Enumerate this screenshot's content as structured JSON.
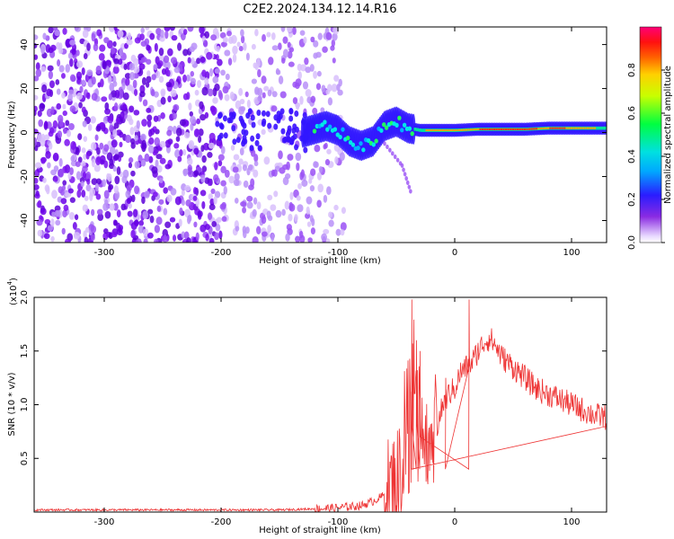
{
  "title": "C2E2.2024.134.12.14.R16",
  "chart_data": [
    {
      "type": "heatmap",
      "xlabel": "Height of straight line (km)",
      "ylabel": "Frequency (Hz)",
      "xlim": [
        -360,
        130
      ],
      "ylim": [
        -50,
        48
      ],
      "xticks": [
        -300,
        -200,
        -100,
        0,
        100
      ],
      "yticks": [
        -40,
        -20,
        0,
        20,
        40
      ],
      "colorbar": {
        "label": "Normalized spectral amplitude",
        "ticks": [
          "0.0",
          "0.2",
          "0.4",
          "0.6",
          "0.8"
        ],
        "range": [
          0,
          1
        ]
      },
      "ridge": {
        "description_values": [
          [
            -130,
            0
          ],
          [
            -110,
            3
          ],
          [
            -100,
            1
          ],
          [
            -90,
            -4
          ],
          [
            -80,
            -6
          ],
          [
            -70,
            -4
          ],
          [
            -60,
            3
          ],
          [
            -50,
            5
          ],
          [
            -40,
            2
          ],
          [
            -30,
            1
          ],
          [
            -10,
            1
          ],
          [
            0,
            1
          ],
          [
            20,
            1.5
          ],
          [
            40,
            1.5
          ],
          [
            60,
            1.5
          ],
          [
            80,
            2
          ],
          [
            100,
            2
          ],
          [
            130,
            2
          ]
        ]
      },
      "noise_region_x": [
        -360,
        -95
      ],
      "noise_strong_x": [
        -360,
        -200
      ],
      "branch": [
        [
          -60,
          -5
        ],
        [
          -45,
          -15
        ],
        [
          -37,
          -28
        ]
      ]
    },
    {
      "type": "line",
      "xlabel": "Height of straight line (km)",
      "ylabel": "SNR (10 * v/v)",
      "yscale_label": "(x10",
      "yscale_exp": "4",
      "xlim": [
        -360,
        130
      ],
      "ylim": [
        0,
        2.0
      ],
      "xticks": [
        -300,
        -200,
        -100,
        0,
        100
      ],
      "yticks": [
        "0.5",
        "1.0",
        "1.5",
        "2.0"
      ],
      "color": "#ee3333",
      "series": [
        {
          "x": [
            -360,
            -300,
            -250,
            -200,
            -150,
            -120,
            -100,
            -80,
            -70,
            -60,
            -50,
            -45,
            -40,
            -35,
            -30,
            -25,
            -20,
            -15,
            -10,
            -5,
            0,
            5,
            10,
            15,
            20,
            25,
            30,
            35,
            40,
            50,
            60,
            70,
            80,
            90,
            100,
            110,
            120,
            130
          ],
          "values": [
            0.02,
            0.02,
            0.02,
            0.02,
            0.02,
            0.03,
            0.04,
            0.06,
            0.1,
            0.16,
            0.3,
            0.45,
            0.6,
            0.9,
            0.7,
            0.5,
            0.3,
            0.8,
            1.0,
            1.1,
            1.15,
            1.3,
            1.35,
            1.4,
            1.5,
            1.58,
            1.62,
            1.55,
            1.45,
            1.35,
            1.25,
            1.15,
            1.1,
            1.05,
            1.0,
            0.95,
            0.9,
            0.88
          ],
          "spikes": [
            [
              -37,
              1.98
            ],
            [
              -33,
              1.6
            ],
            [
              -30,
              1.5
            ],
            [
              12,
              1.98
            ],
            [
              -8,
              1.25
            ]
          ]
        }
      ]
    }
  ]
}
